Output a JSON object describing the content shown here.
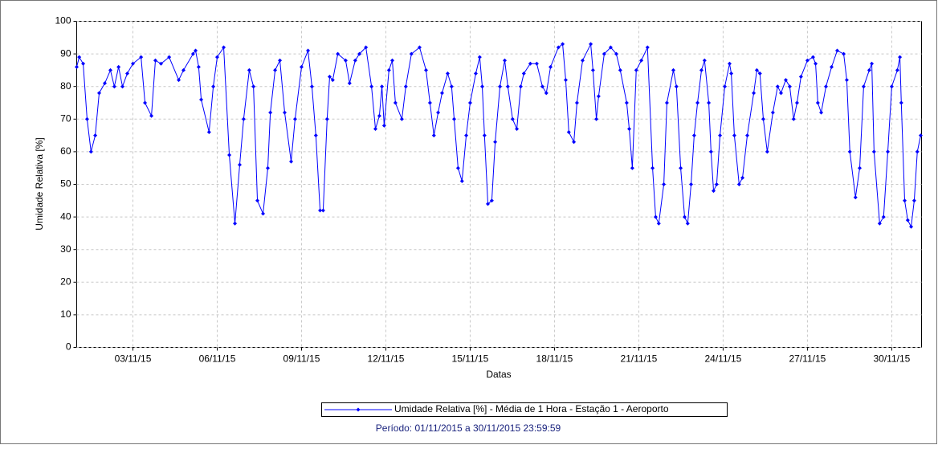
{
  "chart_data": {
    "type": "line",
    "subtitle": "Período: 01/11/2015 a 30/11/2015 23:59:59",
    "x_label": "Datas",
    "y_label": "Umidade Relativa [%]",
    "legend": "bottom",
    "grid": true,
    "xlim": [
      1,
      31.06
    ],
    "ylim": [
      0,
      100
    ],
    "xticks": [
      {
        "value": 3,
        "label": "03/11/15"
      },
      {
        "value": 6,
        "label": "06/11/15"
      },
      {
        "value": 9,
        "label": "09/11/15"
      },
      {
        "value": 12,
        "label": "12/11/15"
      },
      {
        "value": 15,
        "label": "15/11/15"
      },
      {
        "value": 18,
        "label": "18/11/15"
      },
      {
        "value": 21,
        "label": "21/11/15"
      },
      {
        "value": 24,
        "label": "24/11/15"
      },
      {
        "value": 27,
        "label": "27/11/15"
      },
      {
        "value": 30,
        "label": "30/11/15"
      }
    ],
    "yticks": [
      0,
      10,
      20,
      30,
      40,
      50,
      60,
      70,
      80,
      90,
      100
    ],
    "x": [
      1.0,
      1.09,
      1.23,
      1.37,
      1.51,
      1.66,
      1.8,
      2.0,
      2.2,
      2.34,
      2.49,
      2.63,
      2.8,
      3.0,
      3.29,
      3.43,
      3.66,
      3.8,
      4.0,
      4.29,
      4.63,
      4.8,
      5.14,
      5.23,
      5.34,
      5.43,
      5.71,
      5.86,
      6.0,
      6.23,
      6.43,
      6.63,
      6.8,
      6.94,
      7.14,
      7.29,
      7.43,
      7.63,
      7.8,
      7.89,
      8.06,
      8.23,
      8.4,
      8.63,
      8.77,
      9.0,
      9.23,
      9.37,
      9.51,
      9.66,
      9.77,
      9.91,
      10.0,
      10.11,
      10.29,
      10.57,
      10.71,
      10.91,
      11.06,
      11.29,
      11.49,
      11.63,
      11.77,
      11.86,
      11.94,
      12.11,
      12.23,
      12.34,
      12.57,
      12.71,
      12.91,
      13.2,
      13.43,
      13.57,
      13.71,
      13.86,
      14.0,
      14.2,
      14.34,
      14.43,
      14.57,
      14.71,
      14.86,
      15.0,
      15.2,
      15.34,
      15.43,
      15.51,
      15.63,
      15.77,
      15.89,
      16.06,
      16.23,
      16.34,
      16.51,
      16.66,
      16.8,
      16.91,
      17.14,
      17.37,
      17.57,
      17.71,
      17.86,
      18.14,
      18.29,
      18.4,
      18.51,
      18.69,
      18.8,
      19.0,
      19.29,
      19.37,
      19.49,
      19.57,
      19.77,
      20.0,
      20.2,
      20.34,
      20.57,
      20.66,
      20.77,
      20.91,
      21.09,
      21.31,
      21.49,
      21.6,
      21.71,
      21.89,
      22.0,
      22.23,
      22.34,
      22.49,
      22.63,
      22.74,
      22.86,
      22.97,
      23.09,
      23.23,
      23.34,
      23.49,
      23.57,
      23.66,
      23.77,
      23.89,
      24.06,
      24.23,
      24.29,
      24.4,
      24.57,
      24.69,
      24.86,
      25.09,
      25.2,
      25.31,
      25.43,
      25.57,
      25.77,
      25.94,
      26.06,
      26.23,
      26.37,
      26.51,
      26.63,
      26.77,
      27.0,
      27.2,
      27.29,
      27.37,
      27.49,
      27.66,
      27.86,
      28.06,
      28.29,
      28.4,
      28.51,
      28.71,
      28.86,
      29.0,
      29.2,
      29.29,
      29.37,
      29.57,
      29.71,
      29.86,
      30.0,
      30.2,
      30.29,
      30.34,
      30.46,
      30.57,
      30.69,
      30.8,
      30.91,
      31.03
    ],
    "series": [
      {
        "name": "Umidade Relativa [%] - Média de 1 Hora - Estação 1 - Aeroporto",
        "color": "#0000ff",
        "values": [
          86,
          89,
          87,
          70,
          60,
          65,
          78,
          81,
          85,
          80,
          86,
          80,
          84,
          87,
          89,
          75,
          71,
          88,
          87,
          89,
          82,
          85,
          90,
          91,
          86,
          76,
          66,
          80,
          89,
          92,
          59,
          38,
          56,
          70,
          85,
          80,
          45,
          41,
          55,
          72,
          85,
          88,
          72,
          57,
          70,
          86,
          91,
          80,
          65,
          42,
          42,
          70,
          83,
          82,
          90,
          88,
          81,
          88,
          90,
          92,
          80,
          67,
          71,
          80,
          68,
          85,
          88,
          75,
          70,
          80,
          90,
          92,
          85,
          75,
          65,
          72,
          78,
          84,
          80,
          70,
          55,
          51,
          65,
          75,
          84,
          89,
          80,
          65,
          44,
          45,
          63,
          80,
          88,
          80,
          70,
          67,
          80,
          84,
          87,
          87,
          80,
          78,
          86,
          92,
          93,
          82,
          66,
          63,
          75,
          88,
          93,
          85,
          70,
          77,
          90,
          92,
          90,
          85,
          75,
          67,
          55,
          85,
          88,
          92,
          55,
          40,
          38,
          50,
          75,
          85,
          80,
          55,
          40,
          38,
          50,
          65,
          75,
          85,
          88,
          75,
          60,
          48,
          50,
          65,
          80,
          87,
          84,
          65,
          50,
          52,
          65,
          78,
          85,
          84,
          70,
          60,
          72,
          80,
          78,
          82,
          80,
          70,
          75,
          83,
          88,
          89,
          87,
          75,
          72,
          80,
          86,
          91,
          90,
          82,
          60,
          46,
          55,
          80,
          85,
          87,
          60,
          38,
          40,
          60,
          80,
          85,
          89,
          75,
          45,
          39,
          37,
          45,
          60,
          65
        ]
      }
    ]
  }
}
